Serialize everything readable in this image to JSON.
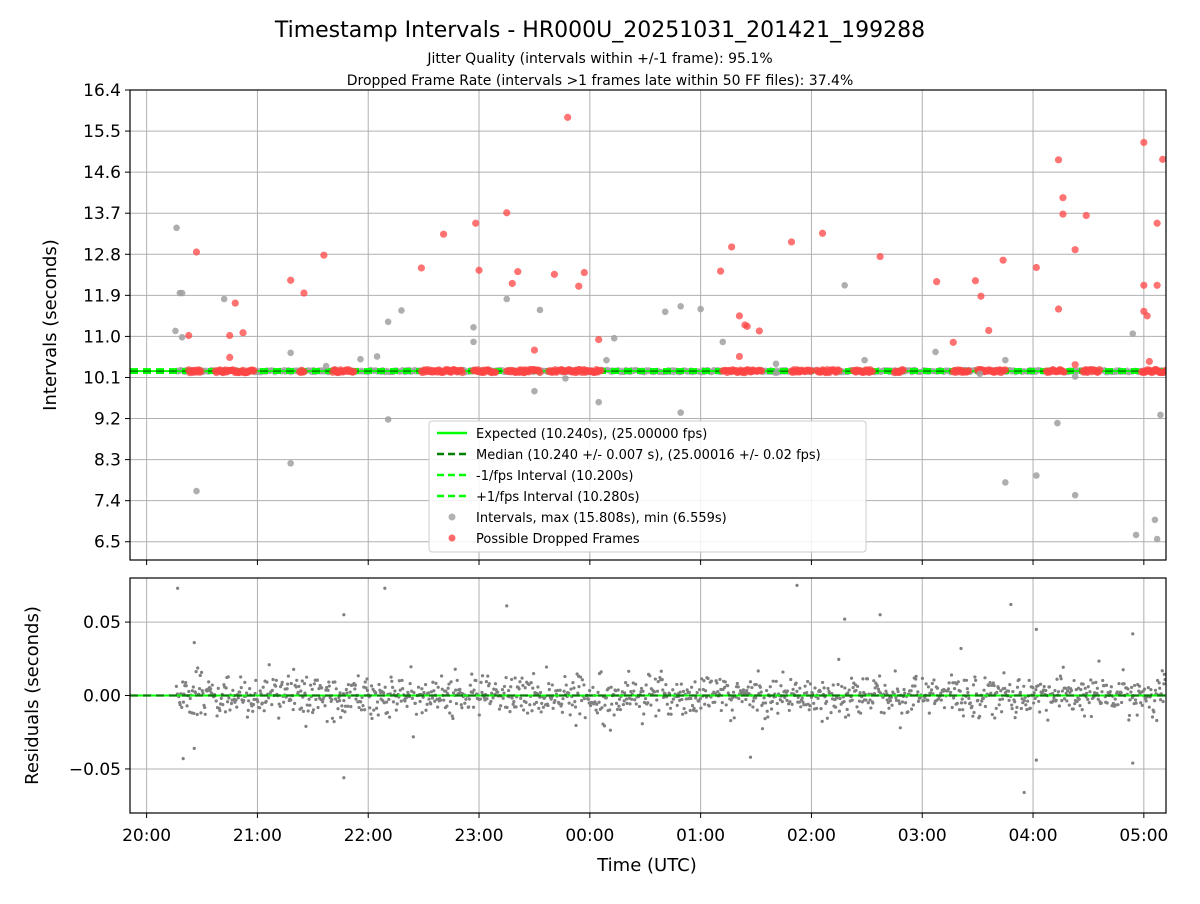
{
  "figure": {
    "title": "Timestamp Intervals - HR000U_20251031_201421_199288",
    "subtitle_1": "Jitter Quality (intervals within +/-1 frame): 95.1%",
    "subtitle_2": "Dropped Frame Rate (intervals >1 frames late within 50 FF files): 37.4%",
    "xlabel": "Time (UTC)"
  },
  "colors": {
    "expected": "#00ff00",
    "median": "#007f00",
    "interval_bounds": "#00ff00",
    "intervals": "#a0a0a0",
    "dropped": "#ff4444",
    "residuals": "#808080",
    "grid": "#b0b0b0"
  },
  "chart_data": [
    {
      "type": "scatter",
      "ylabel": "Intervals (seconds)",
      "x_unit": "hours since 20:00 UTC (axis spans 19:50 to 05:12)",
      "xlim": [
        -0.15,
        9.2
      ],
      "ylim": [
        6.1,
        16.4
      ],
      "yticks": [
        "6.5",
        "7.4",
        "8.3",
        "9.2",
        "10.1",
        "11.0",
        "11.9",
        "12.8",
        "13.7",
        "14.6",
        "15.5",
        "16.4"
      ],
      "ytick_values": [
        6.5,
        7.4,
        8.3,
        9.2,
        10.1,
        11.0,
        11.9,
        12.8,
        13.7,
        14.6,
        15.5,
        16.4
      ],
      "xticks": [
        "20:00",
        "21:00",
        "22:00",
        "23:00",
        "00:00",
        "01:00",
        "02:00",
        "03:00",
        "04:00",
        "05:00"
      ],
      "xtick_values": [
        0,
        1,
        2,
        3,
        4,
        5,
        6,
        7,
        8,
        9
      ],
      "grid": true,
      "legend_position": "lower-center",
      "reference_lines": [
        {
          "name": "Expected (10.240s), (25.00000 fps)",
          "y": 10.24,
          "style": "solid",
          "color_key": "expected"
        },
        {
          "name": "Median (10.240 +/- 0.007 s), (25.00016 +/- 0.02 fps)",
          "y": 10.24,
          "style": "dashed",
          "color_key": "median"
        },
        {
          "name": "-1/fps Interval (10.200s)",
          "y": 10.2,
          "style": "dashed",
          "color_key": "interval_bounds"
        },
        {
          "name": "+1/fps Interval (10.280s)",
          "y": 10.28,
          "style": "dashed",
          "color_key": "interval_bounds"
        }
      ],
      "series": [
        {
          "name": "Intervals, max (15.808s), min (6.559s)",
          "color_key": "intervals",
          "dense_band": {
            "x_start": 0.27,
            "x_end": 9.2,
            "y_center": 10.24,
            "y_spread": 0.06
          },
          "points": [
            [
              0.26,
              11.12
            ],
            [
              0.27,
              13.38
            ],
            [
              0.3,
              11.95
            ],
            [
              0.32,
              11.95
            ],
            [
              0.32,
              10.98
            ],
            [
              0.45,
              7.61
            ],
            [
              0.7,
              11.82
            ],
            [
              1.3,
              8.22
            ],
            [
              1.3,
              10.64
            ],
            [
              1.62,
              10.35
            ],
            [
              1.93,
              10.5
            ],
            [
              2.08,
              10.56
            ],
            [
              2.18,
              9.18
            ],
            [
              2.18,
              11.32
            ],
            [
              2.3,
              11.57
            ],
            [
              2.95,
              11.2
            ],
            [
              2.95,
              10.88
            ],
            [
              3.25,
              11.82
            ],
            [
              3.5,
              9.8
            ],
            [
              3.55,
              11.58
            ],
            [
              3.78,
              10.08
            ],
            [
              4.08,
              9.56
            ],
            [
              4.15,
              10.48
            ],
            [
              4.22,
              10.96
            ],
            [
              4.68,
              11.54
            ],
            [
              4.82,
              9.33
            ],
            [
              4.82,
              11.66
            ],
            [
              5.0,
              11.6
            ],
            [
              5.2,
              10.88
            ],
            [
              5.68,
              10.2
            ],
            [
              5.68,
              10.4
            ],
            [
              6.3,
              12.12
            ],
            [
              6.48,
              10.48
            ],
            [
              7.12,
              10.66
            ],
            [
              7.52,
              10.18
            ],
            [
              7.75,
              7.8
            ],
            [
              7.75,
              10.48
            ],
            [
              8.03,
              7.95
            ],
            [
              8.22,
              9.1
            ],
            [
              8.38,
              10.12
            ],
            [
              8.38,
              7.52
            ],
            [
              8.9,
              11.06
            ],
            [
              8.93,
              6.65
            ],
            [
              9.1,
              6.98
            ],
            [
              9.12,
              6.56
            ],
            [
              9.15,
              9.28
            ]
          ]
        },
        {
          "name": "Possible Dropped Frames",
          "color_key": "dropped",
          "cluster_ranges": [
            [
              0.38,
              0.5
            ],
            [
              0.62,
              0.98
            ],
            [
              1.38,
              1.42
            ],
            [
              1.68,
              1.88
            ],
            [
              2.48,
              2.85
            ],
            [
              2.95,
              3.15
            ],
            [
              3.25,
              3.55
            ],
            [
              3.63,
              4.1
            ],
            [
              5.2,
              5.55
            ],
            [
              5.82,
              6.0
            ],
            [
              6.05,
              6.25
            ],
            [
              6.38,
              6.55
            ],
            [
              6.75,
              6.83
            ],
            [
              7.28,
              7.42
            ],
            [
              7.5,
              7.75
            ],
            [
              8.12,
              8.28
            ],
            [
              8.45,
              8.6
            ],
            [
              8.98,
              9.2
            ]
          ],
          "points": [
            [
              0.38,
              11.02
            ],
            [
              0.45,
              12.85
            ],
            [
              0.75,
              11.02
            ],
            [
              0.75,
              10.54
            ],
            [
              0.8,
              11.73
            ],
            [
              0.87,
              11.08
            ],
            [
              1.3,
              12.23
            ],
            [
              1.42,
              11.95
            ],
            [
              1.6,
              12.78
            ],
            [
              2.48,
              12.5
            ],
            [
              2.68,
              13.24
            ],
            [
              2.97,
              13.48
            ],
            [
              3.0,
              12.45
            ],
            [
              3.25,
              13.71
            ],
            [
              3.3,
              12.16
            ],
            [
              3.35,
              12.42
            ],
            [
              3.5,
              10.7
            ],
            [
              3.68,
              12.36
            ],
            [
              3.8,
              15.8
            ],
            [
              3.9,
              12.1
            ],
            [
              3.95,
              12.4
            ],
            [
              4.08,
              10.93
            ],
            [
              5.18,
              12.43
            ],
            [
              5.28,
              12.96
            ],
            [
              5.35,
              11.45
            ],
            [
              5.35,
              10.56
            ],
            [
              5.4,
              11.25
            ],
            [
              5.42,
              11.22
            ],
            [
              5.53,
              11.12
            ],
            [
              5.82,
              13.07
            ],
            [
              6.1,
              13.26
            ],
            [
              6.62,
              12.75
            ],
            [
              7.13,
              12.2
            ],
            [
              7.28,
              10.87
            ],
            [
              7.48,
              12.22
            ],
            [
              7.53,
              11.88
            ],
            [
              7.6,
              11.13
            ],
            [
              7.73,
              12.67
            ],
            [
              8.03,
              12.51
            ],
            [
              8.23,
              14.87
            ],
            [
              8.23,
              11.6
            ],
            [
              8.27,
              14.04
            ],
            [
              8.27,
              13.68
            ],
            [
              8.38,
              12.9
            ],
            [
              8.38,
              10.38
            ],
            [
              8.48,
              13.65
            ],
            [
              9.0,
              15.25
            ],
            [
              9.0,
              12.12
            ],
            [
              9.0,
              11.55
            ],
            [
              9.03,
              11.45
            ],
            [
              9.05,
              10.45
            ],
            [
              9.12,
              12.12
            ],
            [
              9.12,
              13.48
            ],
            [
              9.17,
              14.88
            ]
          ]
        }
      ]
    },
    {
      "type": "scatter",
      "ylabel": "Residuals (seconds)",
      "xlim": [
        -0.15,
        9.2
      ],
      "ylim": [
        -0.08,
        0.08
      ],
      "yticks": [
        "−0.05",
        "0.00",
        "0.05"
      ],
      "ytick_values": [
        -0.05,
        0.0,
        0.05
      ],
      "xticks": [
        "20:00",
        "21:00",
        "22:00",
        "23:00",
        "00:00",
        "01:00",
        "02:00",
        "03:00",
        "04:00",
        "05:00"
      ],
      "xtick_values": [
        0,
        1,
        2,
        3,
        4,
        5,
        6,
        7,
        8,
        9
      ],
      "grid": true,
      "reference_lines": [
        {
          "name": "Expected",
          "y": 0.0,
          "style": "solid",
          "color_key": "expected"
        },
        {
          "name": "Median",
          "y": 0.0,
          "style": "dashed",
          "color_key": "median"
        }
      ],
      "series": [
        {
          "name": "Residuals",
          "color_key": "residuals",
          "dense_band": {
            "x_start": 0.27,
            "x_end": 9.2,
            "count": 1300,
            "sigma": 0.007
          },
          "points": [
            [
              0.28,
              0.073
            ],
            [
              0.33,
              -0.043
            ],
            [
              0.43,
              0.036
            ],
            [
              0.43,
              -0.036
            ],
            [
              1.78,
              0.055
            ],
            [
              1.78,
              -0.056
            ],
            [
              2.15,
              0.073
            ],
            [
              3.25,
              0.061
            ],
            [
              6.3,
              0.052
            ],
            [
              6.62,
              0.055
            ],
            [
              5.87,
              0.075
            ],
            [
              7.8,
              0.062
            ],
            [
              7.92,
              -0.066
            ],
            [
              8.03,
              0.045
            ],
            [
              8.03,
              -0.044
            ],
            [
              8.9,
              0.042
            ],
            [
              8.9,
              -0.046
            ],
            [
              7.35,
              0.032
            ],
            [
              5.45,
              -0.042
            ]
          ]
        }
      ]
    }
  ]
}
